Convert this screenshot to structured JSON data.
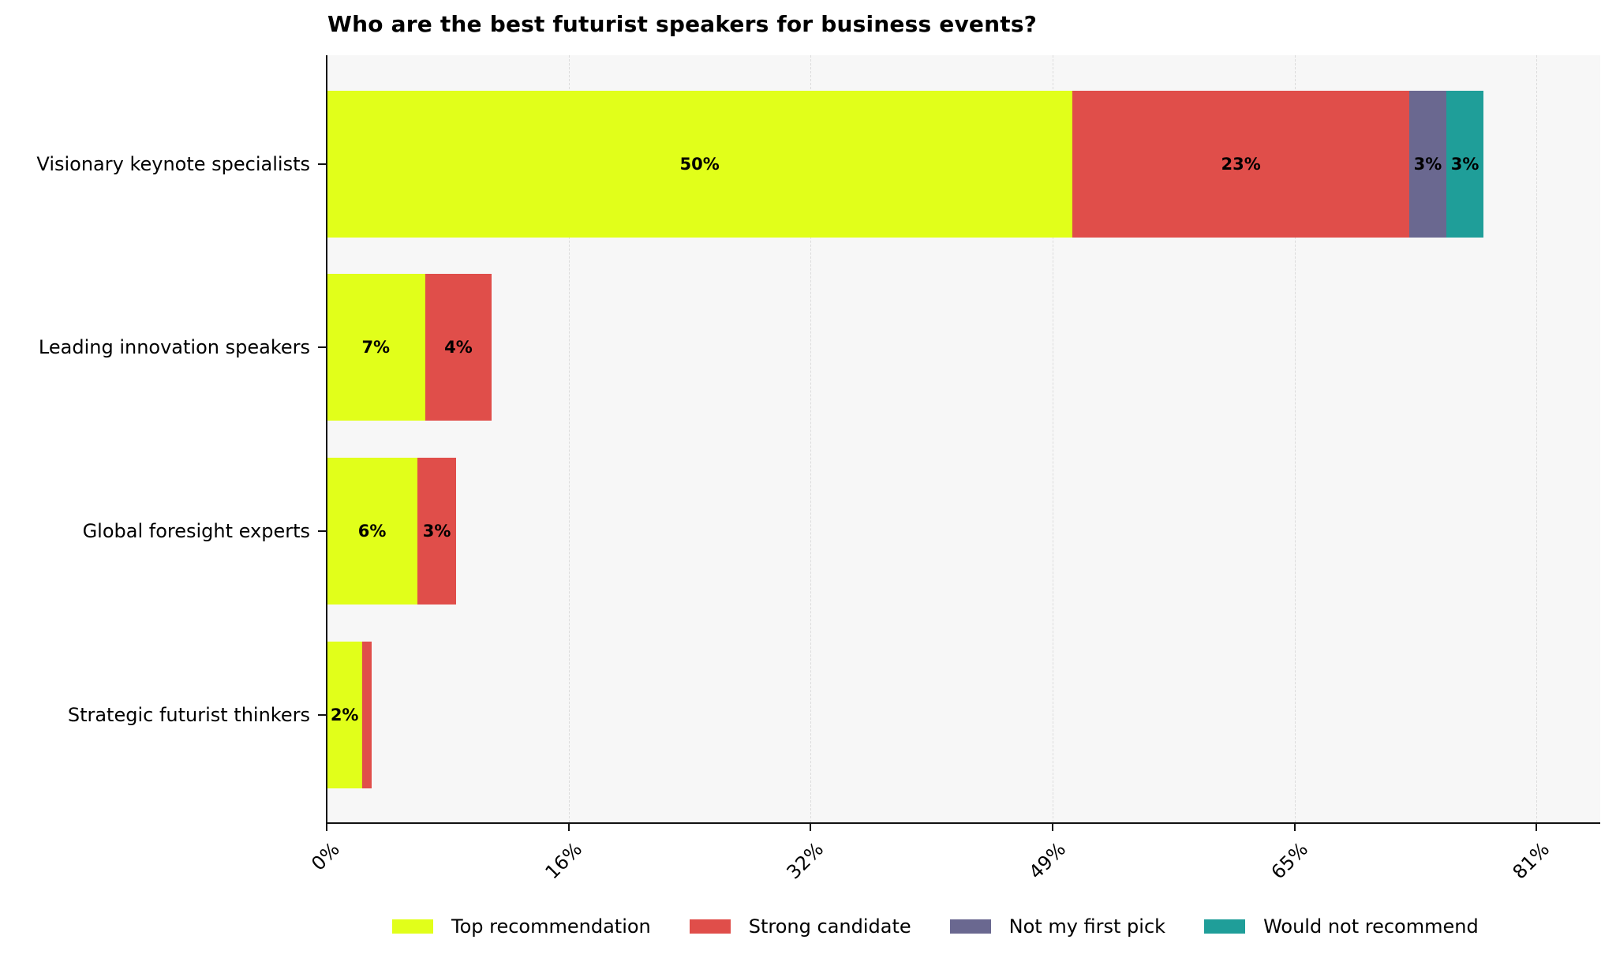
{
  "chart_data": {
    "type": "bar",
    "orientation": "horizontal",
    "stacked": true,
    "title": "Who are the best futurist speakers for business events?",
    "xlabel": "",
    "ylabel": "",
    "categories": [
      "Visionary keynote specialists",
      "Leading innovation speakers",
      "Global foresight experts",
      "Strategic futurist thinkers"
    ],
    "series": [
      {
        "name": "Top recommendation",
        "color": "#e1ff1a",
        "values": [
          50.1,
          6.6,
          6.1,
          2.4
        ],
        "labels": [
          "50%",
          "7%",
          "6%",
          "2%"
        ]
      },
      {
        "name": "Strong candidate",
        "color": "#e04e4a",
        "values": [
          22.6,
          4.5,
          2.6,
          0.6
        ],
        "labels": [
          "23%",
          "4%",
          "3%",
          ""
        ]
      },
      {
        "name": "Not my first pick",
        "color": "#6a6890",
        "values": [
          2.5,
          0,
          0,
          0
        ],
        "labels": [
          "3%",
          "",
          "",
          ""
        ]
      },
      {
        "name": "Would not recommend",
        "color": "#1f9e99",
        "values": [
          2.5,
          0,
          0,
          0
        ],
        "labels": [
          "3%",
          "",
          "",
          ""
        ]
      }
    ],
    "xticks": [
      "0%",
      "16%",
      "32%",
      "49%",
      "65%",
      "81%"
    ],
    "xtick_values": [
      0,
      16.25,
      32.5,
      48.75,
      65,
      81.25
    ],
    "xlim": [
      0,
      85.5
    ],
    "grid": {
      "x": true,
      "y": false,
      "style": "dashed"
    },
    "legend_position": "bottom",
    "background": "#f7f7f7"
  }
}
